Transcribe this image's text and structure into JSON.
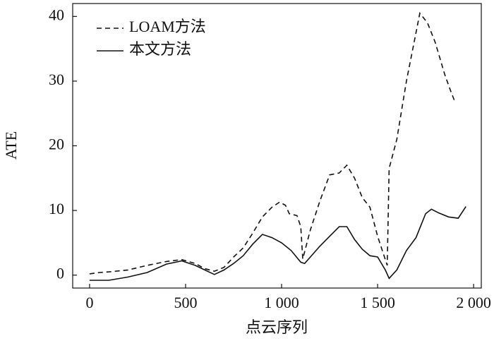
{
  "chart_data": {
    "type": "line",
    "xlabel": "点云序列",
    "ylabel": "ATE",
    "xlim": [
      -88,
      2040
    ],
    "ylim": [
      -2,
      42
    ],
    "xticks": [
      0,
      500,
      {
        "value": 1000,
        "label": "1 000"
      },
      {
        "value": 1500,
        "label": "1 500"
      },
      {
        "value": 2000,
        "label": "2 000"
      }
    ],
    "yticks": [
      0,
      10,
      20,
      30,
      40
    ],
    "legend": "upper left",
    "series": [
      {
        "name": "LOAM方法",
        "color": "#111111",
        "line_style": "dashed",
        "x": [
          0,
          50,
          100,
          200,
          300,
          400,
          480,
          550,
          600,
          650,
          700,
          750,
          800,
          850,
          900,
          950,
          990,
          1020,
          1040,
          1080,
          1100,
          1110,
          1150,
          1200,
          1250,
          1300,
          1340,
          1380,
          1420,
          1460,
          1500,
          1550,
          1560,
          1600,
          1650,
          1700,
          1720,
          1760,
          1800,
          1850,
          1880,
          1900
        ],
        "values": [
          0.2,
          0.4,
          0.5,
          0.8,
          1.5,
          2.1,
          2.4,
          1.8,
          1.0,
          0.6,
          1.2,
          2.8,
          4.2,
          6.5,
          9.0,
          10.5,
          11.3,
          10.8,
          9.5,
          9.2,
          7.5,
          2.5,
          7.0,
          11.5,
          15.5,
          15.8,
          17.0,
          15.0,
          12.0,
          10.5,
          6.0,
          1.5,
          16.5,
          21.0,
          30.0,
          37.5,
          40.5,
          39.0,
          36.0,
          31.0,
          28.5,
          27.0
        ]
      },
      {
        "name": "本文方法",
        "color": "#111111",
        "line_style": "solid",
        "x": [
          0,
          100,
          200,
          300,
          400,
          480,
          550,
          600,
          650,
          700,
          750,
          800,
          850,
          900,
          950,
          1000,
          1050,
          1100,
          1120,
          1150,
          1200,
          1250,
          1300,
          1340,
          1380,
          1420,
          1460,
          1500,
          1540,
          1560,
          1600,
          1650,
          1700,
          1750,
          1780,
          1820,
          1870,
          1920,
          1960
        ],
        "values": [
          -0.8,
          -0.8,
          -0.3,
          0.4,
          1.7,
          2.2,
          1.5,
          0.8,
          0.1,
          0.8,
          1.8,
          3.0,
          4.8,
          6.3,
          5.8,
          5.0,
          3.8,
          2.0,
          1.8,
          2.8,
          4.5,
          6.0,
          7.5,
          7.5,
          5.5,
          4.0,
          3.0,
          2.8,
          0.8,
          -0.5,
          0.8,
          3.8,
          5.8,
          9.5,
          10.2,
          9.6,
          9.0,
          8.8,
          10.6
        ]
      }
    ]
  }
}
